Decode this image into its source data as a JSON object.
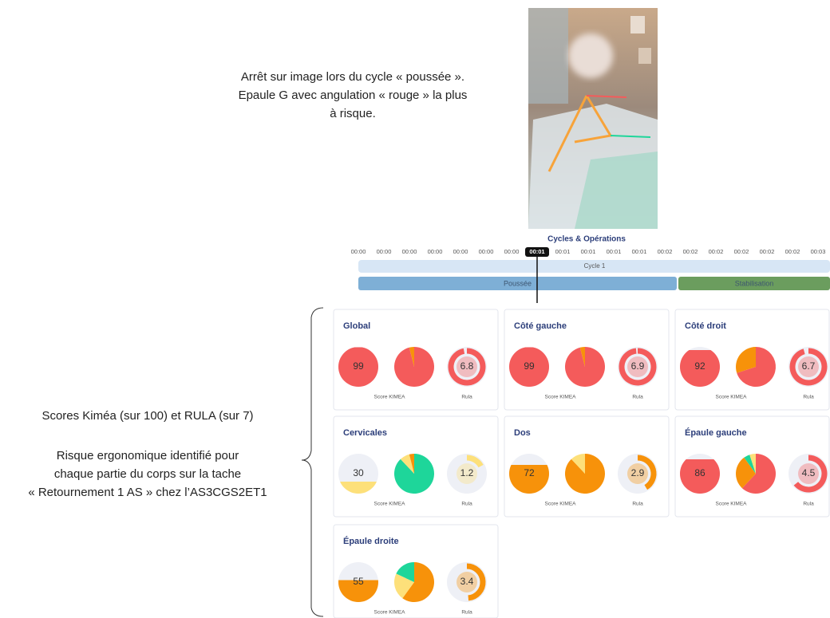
{
  "annotation_top": [
    "Arrêt sur image lors du cycle « poussée ».",
    "Epaule G avec angulation « rouge » la plus",
    "à risque."
  ],
  "annotation_left": {
    "title": "Scores Kiméa (sur 100) et RULA (sur 7)",
    "lines": [
      "Risque ergonomique identifié pour",
      "chaque partie du corps sur la tache",
      "« Retournement 1 AS » chez l’AS3CGS2ET1"
    ]
  },
  "timeline": {
    "title": "Cycles & Opérations",
    "ticks": [
      "00:00",
      "00:00",
      "00:00",
      "00:00",
      "00:00",
      "00:00",
      "00:00",
      "00:01",
      "00:01",
      "00:01",
      "00:01",
      "00:02",
      "00:02",
      "00:02",
      "00:02",
      "00:02",
      "00:02",
      "00:03"
    ],
    "marker": "00:01",
    "cycle": "Cycle 1",
    "operations": [
      {
        "name": "Poussée",
        "color": "#7eafd6"
      },
      {
        "name": "Stabilisation",
        "color": "#6b9d5e"
      }
    ]
  },
  "cards": [
    {
      "title": "Global",
      "kimea": 99,
      "kimea_color": "#f45b5b",
      "pie": [
        {
          "color": "#f45b5b",
          "value": 96
        },
        {
          "color": "#f7920a",
          "value": 4
        }
      ],
      "rula": 6.8,
      "rula_color": "#f45b5b",
      "kimea_label": "Score KIMEA",
      "rula_label": "Rula"
    },
    {
      "title": "Côté gauche",
      "kimea": 99,
      "kimea_color": "#f45b5b",
      "pie": [
        {
          "color": "#f45b5b",
          "value": 96
        },
        {
          "color": "#f7920a",
          "value": 4
        }
      ],
      "rula": 6.9,
      "rula_color": "#f45b5b",
      "kimea_label": "Score KIMEA",
      "rula_label": "Rula"
    },
    {
      "title": "Côté droit",
      "kimea": 92,
      "kimea_color": "#f45b5b",
      "pie": [
        {
          "color": "#f45b5b",
          "value": 70
        },
        {
          "color": "#f7920a",
          "value": 30
        }
      ],
      "rula": 6.7,
      "rula_color": "#f45b5b",
      "kimea_label": "Score KIMEA",
      "rula_label": "Rula"
    },
    {
      "title": "Cervicales",
      "kimea": 30,
      "kimea_color": "#fde07a",
      "pie": [
        {
          "color": "#1ed69a",
          "value": 88
        },
        {
          "color": "#fde07a",
          "value": 8
        },
        {
          "color": "#f7920a",
          "value": 4
        }
      ],
      "rula": 1.2,
      "rula_color": "#fde07a",
      "kimea_label": "Score KIMEA",
      "rula_label": "Rula"
    },
    {
      "title": "Dos",
      "kimea": 72,
      "kimea_color": "#f7920a",
      "pie": [
        {
          "color": "#f7920a",
          "value": 88
        },
        {
          "color": "#fde07a",
          "value": 12
        }
      ],
      "rula": 2.9,
      "rula_color": "#f7920a",
      "kimea_label": "Score KIMEA",
      "rula_label": "Rula"
    },
    {
      "title": "Épaule gauche",
      "kimea": 86,
      "kimea_color": "#f45b5b",
      "pie": [
        {
          "color": "#f45b5b",
          "value": 62
        },
        {
          "color": "#f7920a",
          "value": 28
        },
        {
          "color": "#1ed69a",
          "value": 5
        },
        {
          "color": "#fde07a",
          "value": 5
        }
      ],
      "rula": 4.5,
      "rula_color": "#f45b5b",
      "kimea_label": "Score KIMEA",
      "rula_label": "Rula"
    },
    {
      "title": "Épaule droite",
      "kimea": 55,
      "kimea_color": "#f7920a",
      "pie": [
        {
          "color": "#f7920a",
          "value": 60
        },
        {
          "color": "#fde07a",
          "value": 22
        },
        {
          "color": "#1ed69a",
          "value": 18
        }
      ],
      "rula": 3.4,
      "rula_color": "#f7920a",
      "kimea_label": "Score KIMEA",
      "rula_label": "Rula"
    }
  ]
}
